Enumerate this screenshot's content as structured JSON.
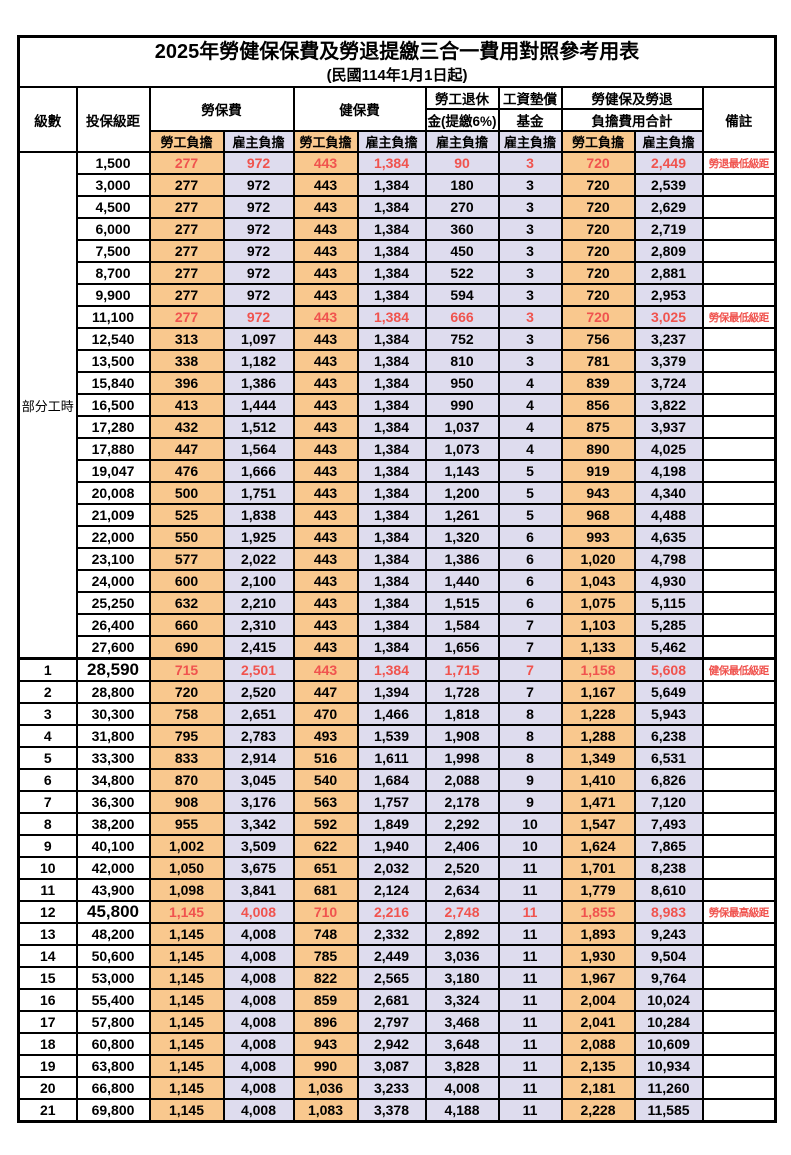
{
  "title": "2025年勞健保保費及勞退提繳三合一費用對照參考用表",
  "subtitle": "(民國114年1月1日起)",
  "colors": {
    "employee_bg": "#F9C88E",
    "employer_bg": "#DEDCEE",
    "highlight_red": "#F0534E",
    "grid": "#000000"
  },
  "columns": {
    "level": "級數",
    "bracket": "投保級距",
    "labor_ins": "勞保費",
    "health_ins": "健保費",
    "pension_line1": "勞工退休",
    "pension_line2": "金(提繳6%)",
    "arrears_line1": "工資墊償",
    "arrears_line2": "基金",
    "total_line1": "勞健保及勞退",
    "total_line2": "負擔費用合計",
    "remark": "備註",
    "employee": "勞工負擔",
    "employer": "雇主負擔"
  },
  "part_time_label": "部分工時",
  "part_time_span": 23,
  "rows": [
    {
      "level": "",
      "bracket": "1,500",
      "v": [
        "277",
        "972",
        "443",
        "1,384",
        "90",
        "3",
        "720",
        "2,449"
      ],
      "remark": "勞退最低級距",
      "hl": true
    },
    {
      "level": "",
      "bracket": "3,000",
      "v": [
        "277",
        "972",
        "443",
        "1,384",
        "180",
        "3",
        "720",
        "2,539"
      ],
      "remark": ""
    },
    {
      "level": "",
      "bracket": "4,500",
      "v": [
        "277",
        "972",
        "443",
        "1,384",
        "270",
        "3",
        "720",
        "2,629"
      ],
      "remark": ""
    },
    {
      "level": "",
      "bracket": "6,000",
      "v": [
        "277",
        "972",
        "443",
        "1,384",
        "360",
        "3",
        "720",
        "2,719"
      ],
      "remark": ""
    },
    {
      "level": "",
      "bracket": "7,500",
      "v": [
        "277",
        "972",
        "443",
        "1,384",
        "450",
        "3",
        "720",
        "2,809"
      ],
      "remark": ""
    },
    {
      "level": "",
      "bracket": "8,700",
      "v": [
        "277",
        "972",
        "443",
        "1,384",
        "522",
        "3",
        "720",
        "2,881"
      ],
      "remark": ""
    },
    {
      "level": "",
      "bracket": "9,900",
      "v": [
        "277",
        "972",
        "443",
        "1,384",
        "594",
        "3",
        "720",
        "2,953"
      ],
      "remark": ""
    },
    {
      "level": "",
      "bracket": "11,100",
      "v": [
        "277",
        "972",
        "443",
        "1,384",
        "666",
        "3",
        "720",
        "3,025"
      ],
      "remark": "勞保最低級距",
      "hl": true
    },
    {
      "level": "",
      "bracket": "12,540",
      "v": [
        "313",
        "1,097",
        "443",
        "1,384",
        "752",
        "3",
        "756",
        "3,237"
      ],
      "remark": ""
    },
    {
      "level": "",
      "bracket": "13,500",
      "v": [
        "338",
        "1,182",
        "443",
        "1,384",
        "810",
        "3",
        "781",
        "3,379"
      ],
      "remark": ""
    },
    {
      "level": "",
      "bracket": "15,840",
      "v": [
        "396",
        "1,386",
        "443",
        "1,384",
        "950",
        "4",
        "839",
        "3,724"
      ],
      "remark": ""
    },
    {
      "level": "",
      "bracket": "16,500",
      "v": [
        "413",
        "1,444",
        "443",
        "1,384",
        "990",
        "4",
        "856",
        "3,822"
      ],
      "remark": ""
    },
    {
      "level": "",
      "bracket": "17,280",
      "v": [
        "432",
        "1,512",
        "443",
        "1,384",
        "1,037",
        "4",
        "875",
        "3,937"
      ],
      "remark": ""
    },
    {
      "level": "",
      "bracket": "17,880",
      "v": [
        "447",
        "1,564",
        "443",
        "1,384",
        "1,073",
        "4",
        "890",
        "4,025"
      ],
      "remark": ""
    },
    {
      "level": "",
      "bracket": "19,047",
      "v": [
        "476",
        "1,666",
        "443",
        "1,384",
        "1,143",
        "5",
        "919",
        "4,198"
      ],
      "remark": ""
    },
    {
      "level": "",
      "bracket": "20,008",
      "v": [
        "500",
        "1,751",
        "443",
        "1,384",
        "1,200",
        "5",
        "943",
        "4,340"
      ],
      "remark": ""
    },
    {
      "level": "",
      "bracket": "21,009",
      "v": [
        "525",
        "1,838",
        "443",
        "1,384",
        "1,261",
        "5",
        "968",
        "4,488"
      ],
      "remark": ""
    },
    {
      "level": "",
      "bracket": "22,000",
      "v": [
        "550",
        "1,925",
        "443",
        "1,384",
        "1,320",
        "6",
        "993",
        "4,635"
      ],
      "remark": ""
    },
    {
      "level": "",
      "bracket": "23,100",
      "v": [
        "577",
        "2,022",
        "443",
        "1,384",
        "1,386",
        "6",
        "1,020",
        "4,798"
      ],
      "remark": ""
    },
    {
      "level": "",
      "bracket": "24,000",
      "v": [
        "600",
        "2,100",
        "443",
        "1,384",
        "1,440",
        "6",
        "1,043",
        "4,930"
      ],
      "remark": ""
    },
    {
      "level": "",
      "bracket": "25,250",
      "v": [
        "632",
        "2,210",
        "443",
        "1,384",
        "1,515",
        "6",
        "1,075",
        "5,115"
      ],
      "remark": ""
    },
    {
      "level": "",
      "bracket": "26,400",
      "v": [
        "660",
        "2,310",
        "443",
        "1,384",
        "1,584",
        "7",
        "1,103",
        "5,285"
      ],
      "remark": ""
    },
    {
      "level": "",
      "bracket": "27,600",
      "v": [
        "690",
        "2,415",
        "443",
        "1,384",
        "1,656",
        "7",
        "1,133",
        "5,462"
      ],
      "remark": ""
    },
    {
      "level": "1",
      "bracket": "28,590",
      "v": [
        "715",
        "2,501",
        "443",
        "1,384",
        "1,715",
        "7",
        "1,158",
        "5,608"
      ],
      "remark": "健保最低級距",
      "hl": true,
      "big": true,
      "sep": true
    },
    {
      "level": "2",
      "bracket": "28,800",
      "v": [
        "720",
        "2,520",
        "447",
        "1,394",
        "1,728",
        "7",
        "1,167",
        "5,649"
      ],
      "remark": ""
    },
    {
      "level": "3",
      "bracket": "30,300",
      "v": [
        "758",
        "2,651",
        "470",
        "1,466",
        "1,818",
        "8",
        "1,228",
        "5,943"
      ],
      "remark": ""
    },
    {
      "level": "4",
      "bracket": "31,800",
      "v": [
        "795",
        "2,783",
        "493",
        "1,539",
        "1,908",
        "8",
        "1,288",
        "6,238"
      ],
      "remark": ""
    },
    {
      "level": "5",
      "bracket": "33,300",
      "v": [
        "833",
        "2,914",
        "516",
        "1,611",
        "1,998",
        "8",
        "1,349",
        "6,531"
      ],
      "remark": ""
    },
    {
      "level": "6",
      "bracket": "34,800",
      "v": [
        "870",
        "3,045",
        "540",
        "1,684",
        "2,088",
        "9",
        "1,410",
        "6,826"
      ],
      "remark": ""
    },
    {
      "level": "7",
      "bracket": "36,300",
      "v": [
        "908",
        "3,176",
        "563",
        "1,757",
        "2,178",
        "9",
        "1,471",
        "7,120"
      ],
      "remark": ""
    },
    {
      "level": "8",
      "bracket": "38,200",
      "v": [
        "955",
        "3,342",
        "592",
        "1,849",
        "2,292",
        "10",
        "1,547",
        "7,493"
      ],
      "remark": ""
    },
    {
      "level": "9",
      "bracket": "40,100",
      "v": [
        "1,002",
        "3,509",
        "622",
        "1,940",
        "2,406",
        "10",
        "1,624",
        "7,865"
      ],
      "remark": ""
    },
    {
      "level": "10",
      "bracket": "42,000",
      "v": [
        "1,050",
        "3,675",
        "651",
        "2,032",
        "2,520",
        "11",
        "1,701",
        "8,238"
      ],
      "remark": ""
    },
    {
      "level": "11",
      "bracket": "43,900",
      "v": [
        "1,098",
        "3,841",
        "681",
        "2,124",
        "2,634",
        "11",
        "1,779",
        "8,610"
      ],
      "remark": ""
    },
    {
      "level": "12",
      "bracket": "45,800",
      "v": [
        "1,145",
        "4,008",
        "710",
        "2,216",
        "2,748",
        "11",
        "1,855",
        "8,983"
      ],
      "remark": "勞保最高級距",
      "hl": true,
      "big": true
    },
    {
      "level": "13",
      "bracket": "48,200",
      "v": [
        "1,145",
        "4,008",
        "748",
        "2,332",
        "2,892",
        "11",
        "1,893",
        "9,243"
      ],
      "remark": ""
    },
    {
      "level": "14",
      "bracket": "50,600",
      "v": [
        "1,145",
        "4,008",
        "785",
        "2,449",
        "3,036",
        "11",
        "1,930",
        "9,504"
      ],
      "remark": ""
    },
    {
      "level": "15",
      "bracket": "53,000",
      "v": [
        "1,145",
        "4,008",
        "822",
        "2,565",
        "3,180",
        "11",
        "1,967",
        "9,764"
      ],
      "remark": ""
    },
    {
      "level": "16",
      "bracket": "55,400",
      "v": [
        "1,145",
        "4,008",
        "859",
        "2,681",
        "3,324",
        "11",
        "2,004",
        "10,024"
      ],
      "remark": ""
    },
    {
      "level": "17",
      "bracket": "57,800",
      "v": [
        "1,145",
        "4,008",
        "896",
        "2,797",
        "3,468",
        "11",
        "2,041",
        "10,284"
      ],
      "remark": ""
    },
    {
      "level": "18",
      "bracket": "60,800",
      "v": [
        "1,145",
        "4,008",
        "943",
        "2,942",
        "3,648",
        "11",
        "2,088",
        "10,609"
      ],
      "remark": ""
    },
    {
      "level": "19",
      "bracket": "63,800",
      "v": [
        "1,145",
        "4,008",
        "990",
        "3,087",
        "3,828",
        "11",
        "2,135",
        "10,934"
      ],
      "remark": ""
    },
    {
      "level": "20",
      "bracket": "66,800",
      "v": [
        "1,145",
        "4,008",
        "1,036",
        "3,233",
        "4,008",
        "11",
        "2,181",
        "11,260"
      ],
      "remark": ""
    },
    {
      "level": "21",
      "bracket": "69,800",
      "v": [
        "1,145",
        "4,008",
        "1,083",
        "3,378",
        "4,188",
        "11",
        "2,228",
        "11,585"
      ],
      "remark": ""
    }
  ]
}
